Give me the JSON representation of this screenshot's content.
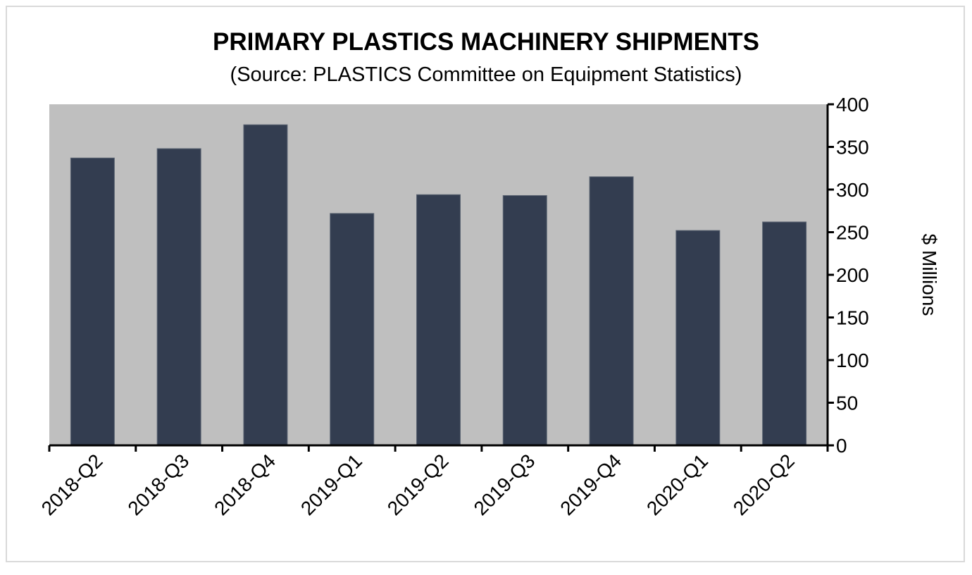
{
  "chart_data": {
    "type": "bar",
    "title": "PRIMARY PLASTICS MACHINERY SHIPMENTS",
    "subtitle": "(Source: PLASTICS Committee on Equipment Statistics)",
    "categories": [
      "2018-Q2",
      "2018-Q3",
      "2018-Q4",
      "2019-Q1",
      "2019-Q2",
      "2019-Q3",
      "2019-Q4",
      "2020-Q1",
      "2020-Q2"
    ],
    "values": [
      337,
      348,
      376,
      272,
      294,
      293,
      315,
      252,
      262
    ],
    "xlabel": "",
    "ylabel": "$ Millions",
    "ylim": [
      0,
      400
    ],
    "yticks": [
      0,
      50,
      100,
      150,
      200,
      250,
      300,
      350,
      400
    ],
    "y_axis_side": "right",
    "grid": false,
    "legend": "none",
    "colors": {
      "bar": "#333d50",
      "plot_background": "#bfbfbf"
    }
  }
}
